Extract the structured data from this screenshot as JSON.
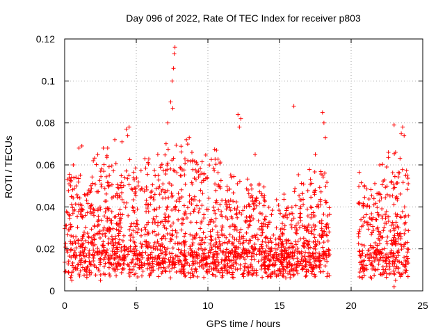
{
  "chart_data": {
    "type": "scatter",
    "title": "Day 096 of 2022, Rate Of TEC Index for receiver p803",
    "xlabel": "GPS time / hours",
    "ylabel": "ROTI / TECUs",
    "xlim": [
      0,
      25
    ],
    "ylim": [
      0,
      0.12
    ],
    "x_ticks": [
      "0",
      "5",
      "10",
      "15",
      "20",
      "25"
    ],
    "y_ticks": [
      "0",
      "0.02",
      "0.04",
      "0.06",
      "0.08",
      "0.1",
      "0.12"
    ],
    "grid": true,
    "marker": "plus",
    "color": "#ff0000",
    "data_gap_hours": [
      18.5,
      20.5
    ],
    "series": [
      {
        "points": [
          [
            0.3,
            0.051
          ],
          [
            0.6,
            0.06
          ],
          [
            0.8,
            0.05
          ],
          [
            1.0,
            0.068
          ],
          [
            1.2,
            0.069
          ],
          [
            2.0,
            0.062
          ],
          [
            2.7,
            0.068
          ],
          [
            3.0,
            0.068
          ],
          [
            3.5,
            0.072
          ],
          [
            4.0,
            0.071
          ],
          [
            4.3,
            0.077
          ],
          [
            4.5,
            0.078
          ],
          [
            4.4,
            0.074
          ],
          [
            5.6,
            0.063
          ],
          [
            6.5,
            0.065
          ],
          [
            7.2,
            0.08
          ],
          [
            7.4,
            0.09
          ],
          [
            7.5,
            0.1
          ],
          [
            7.6,
            0.106
          ],
          [
            7.65,
            0.113
          ],
          [
            7.7,
            0.116
          ],
          [
            7.55,
            0.087
          ],
          [
            8.5,
            0.072
          ],
          [
            8.7,
            0.073
          ],
          [
            10.6,
            0.067
          ],
          [
            12.1,
            0.084
          ],
          [
            12.2,
            0.078
          ],
          [
            12.3,
            0.082
          ],
          [
            13.3,
            0.065
          ],
          [
            16.0,
            0.088
          ],
          [
            17.5,
            0.065
          ],
          [
            18.0,
            0.085
          ],
          [
            18.1,
            0.08
          ],
          [
            18.2,
            0.073
          ],
          [
            22.0,
            0.06
          ],
          [
            22.6,
            0.066
          ],
          [
            23.0,
            0.079
          ],
          [
            23.1,
            0.066
          ],
          [
            23.5,
            0.075
          ],
          [
            23.6,
            0.078
          ],
          [
            23.7,
            0.074
          ],
          [
            23.0,
            0.002
          ],
          [
            23.1,
            0.005
          ],
          [
            0.5,
            0.005
          ],
          [
            2.5,
            0.005
          ]
        ]
      }
    ]
  }
}
